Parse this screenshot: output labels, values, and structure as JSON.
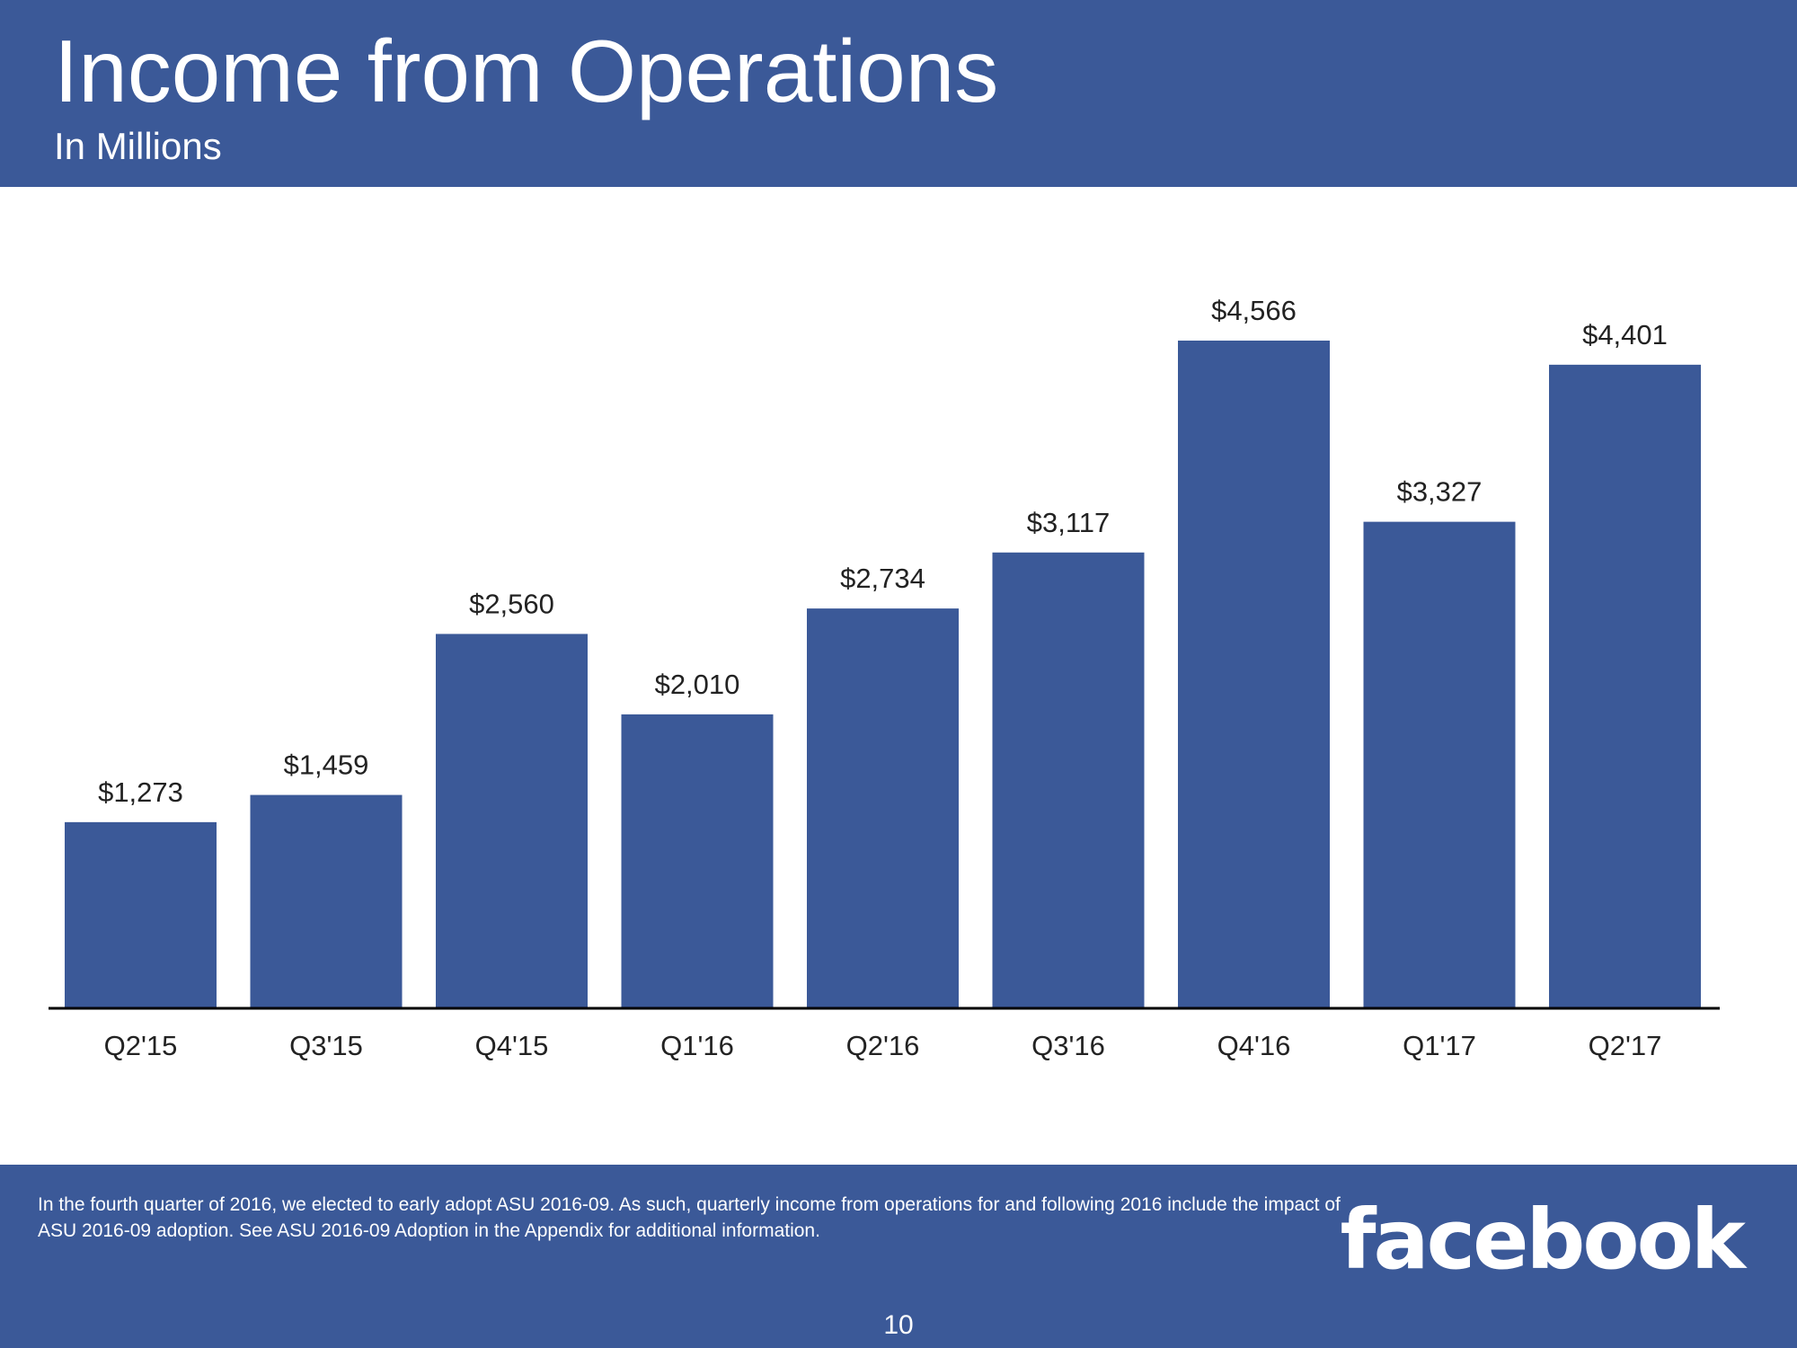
{
  "header": {
    "title": "Income from Operations",
    "subtitle": "In Millions"
  },
  "chart_data": {
    "type": "bar",
    "title": "Income from Operations",
    "subtitle": "In Millions",
    "categories": [
      "Q2'15",
      "Q3'15",
      "Q4'15",
      "Q1'16",
      "Q2'16",
      "Q3'16",
      "Q4'16",
      "Q1'17",
      "Q2'17"
    ],
    "values": [
      1273,
      1459,
      2560,
      2010,
      2734,
      3117,
      4566,
      3327,
      4401
    ],
    "data_labels": [
      "$1,273",
      "$1,459",
      "$2,560",
      "$2,010",
      "$2,734",
      "$3,117",
      "$4,566",
      "$3,327",
      "$4,401"
    ],
    "xlabel": "",
    "ylabel": "",
    "ylim": [
      0,
      4566
    ],
    "grid": false,
    "legend": "none",
    "bar_color": "#3b5998",
    "label_color": "#222222"
  },
  "footer": {
    "footnote": "In the fourth quarter of 2016, we elected to early adopt ASU 2016-09. As such, quarterly income from operations for and following 2016 include the impact of ASU 2016-09 adoption. See ASU 2016-09 Adoption in the Appendix for additional information.",
    "logo_text": "facebook",
    "page_number": "10",
    "background_color": "#3b5998"
  }
}
